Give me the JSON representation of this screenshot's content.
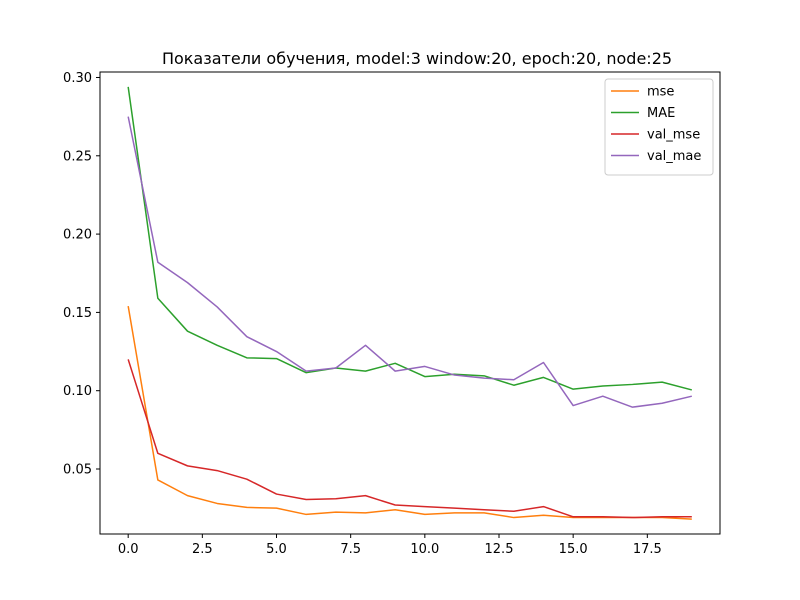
{
  "chart_data": {
    "type": "line",
    "title": "Показатели обучения, model:3 window:20, epoch:20, node:25",
    "xlabel": "",
    "ylabel": "",
    "xlim": [
      -0.95,
      19.95
    ],
    "ylim": [
      0.0085,
      0.3035
    ],
    "x_ticks": [
      0,
      2.5,
      5,
      7.5,
      10,
      12.5,
      15,
      17.5
    ],
    "x_tick_labels": [
      "0.0",
      "2.5",
      "5.0",
      "7.5",
      "10.0",
      "12.5",
      "15.0",
      "17.5"
    ],
    "y_ticks": [
      0.05,
      0.1,
      0.15,
      0.2,
      0.25,
      0.3
    ],
    "y_tick_labels": [
      "0.05",
      "0.10",
      "0.15",
      "0.20",
      "0.25",
      "0.30"
    ],
    "grid": false,
    "legend_position": "top-right",
    "x": [
      0,
      1,
      2,
      3,
      4,
      5,
      6,
      7,
      8,
      9,
      10,
      11,
      12,
      13,
      14,
      15,
      16,
      17,
      18,
      19
    ],
    "series": [
      {
        "name": "mse",
        "color": "#ff7f0e",
        "values": [
          0.154,
          0.043,
          0.033,
          0.028,
          0.0255,
          0.025,
          0.021,
          0.0225,
          0.022,
          0.024,
          0.021,
          0.022,
          0.022,
          0.019,
          0.0205,
          0.019,
          0.019,
          0.019,
          0.019,
          0.018
        ]
      },
      {
        "name": "MAE",
        "color": "#2ca02c",
        "values": [
          0.294,
          0.159,
          0.138,
          0.129,
          0.121,
          0.1205,
          0.1115,
          0.1145,
          0.1125,
          0.1175,
          0.109,
          0.1105,
          0.1095,
          0.1035,
          0.1085,
          0.101,
          0.103,
          0.104,
          0.1055,
          0.1005
        ]
      },
      {
        "name": "val_mse",
        "color": "#d62728",
        "values": [
          0.12,
          0.06,
          0.052,
          0.049,
          0.0435,
          0.034,
          0.0305,
          0.031,
          0.033,
          0.027,
          0.026,
          0.025,
          0.024,
          0.023,
          0.026,
          0.0195,
          0.0195,
          0.019,
          0.0195,
          0.0195
        ]
      },
      {
        "name": "val_mae",
        "color": "#9467bd",
        "values": [
          0.275,
          0.182,
          0.169,
          0.1535,
          0.1345,
          0.125,
          0.1125,
          0.1145,
          0.129,
          0.1125,
          0.1155,
          0.11,
          0.108,
          0.107,
          0.118,
          0.0905,
          0.0965,
          0.0895,
          0.092,
          0.0965
        ]
      }
    ]
  }
}
